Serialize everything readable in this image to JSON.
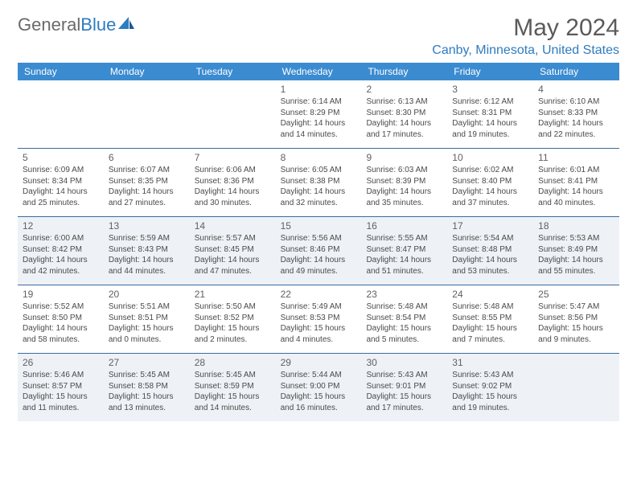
{
  "brand": {
    "name_gray": "General",
    "name_blue": "Blue"
  },
  "title": "May 2024",
  "location": "Canby, Minnesota, United States",
  "colors": {
    "header_bg": "#3b8bd0",
    "header_text": "#ffffff",
    "row_border": "#3b6ba0",
    "shade_bg": "#eef2f6",
    "brand_blue": "#2e7cc0",
    "text_gray": "#5a5a5a"
  },
  "day_headers": [
    "Sunday",
    "Monday",
    "Tuesday",
    "Wednesday",
    "Thursday",
    "Friday",
    "Saturday"
  ],
  "weeks": [
    [
      {
        "num": "",
        "sunrise": "",
        "sunset": "",
        "daylight": "",
        "shade": false
      },
      {
        "num": "",
        "sunrise": "",
        "sunset": "",
        "daylight": "",
        "shade": false
      },
      {
        "num": "",
        "sunrise": "",
        "sunset": "",
        "daylight": "",
        "shade": false
      },
      {
        "num": "1",
        "sunrise": "Sunrise: 6:14 AM",
        "sunset": "Sunset: 8:29 PM",
        "daylight": "Daylight: 14 hours and 14 minutes.",
        "shade": false
      },
      {
        "num": "2",
        "sunrise": "Sunrise: 6:13 AM",
        "sunset": "Sunset: 8:30 PM",
        "daylight": "Daylight: 14 hours and 17 minutes.",
        "shade": false
      },
      {
        "num": "3",
        "sunrise": "Sunrise: 6:12 AM",
        "sunset": "Sunset: 8:31 PM",
        "daylight": "Daylight: 14 hours and 19 minutes.",
        "shade": false
      },
      {
        "num": "4",
        "sunrise": "Sunrise: 6:10 AM",
        "sunset": "Sunset: 8:33 PM",
        "daylight": "Daylight: 14 hours and 22 minutes.",
        "shade": false
      }
    ],
    [
      {
        "num": "5",
        "sunrise": "Sunrise: 6:09 AM",
        "sunset": "Sunset: 8:34 PM",
        "daylight": "Daylight: 14 hours and 25 minutes.",
        "shade": false
      },
      {
        "num": "6",
        "sunrise": "Sunrise: 6:07 AM",
        "sunset": "Sunset: 8:35 PM",
        "daylight": "Daylight: 14 hours and 27 minutes.",
        "shade": false
      },
      {
        "num": "7",
        "sunrise": "Sunrise: 6:06 AM",
        "sunset": "Sunset: 8:36 PM",
        "daylight": "Daylight: 14 hours and 30 minutes.",
        "shade": false
      },
      {
        "num": "8",
        "sunrise": "Sunrise: 6:05 AM",
        "sunset": "Sunset: 8:38 PM",
        "daylight": "Daylight: 14 hours and 32 minutes.",
        "shade": false
      },
      {
        "num": "9",
        "sunrise": "Sunrise: 6:03 AM",
        "sunset": "Sunset: 8:39 PM",
        "daylight": "Daylight: 14 hours and 35 minutes.",
        "shade": false
      },
      {
        "num": "10",
        "sunrise": "Sunrise: 6:02 AM",
        "sunset": "Sunset: 8:40 PM",
        "daylight": "Daylight: 14 hours and 37 minutes.",
        "shade": false
      },
      {
        "num": "11",
        "sunrise": "Sunrise: 6:01 AM",
        "sunset": "Sunset: 8:41 PM",
        "daylight": "Daylight: 14 hours and 40 minutes.",
        "shade": false
      }
    ],
    [
      {
        "num": "12",
        "sunrise": "Sunrise: 6:00 AM",
        "sunset": "Sunset: 8:42 PM",
        "daylight": "Daylight: 14 hours and 42 minutes.",
        "shade": true
      },
      {
        "num": "13",
        "sunrise": "Sunrise: 5:59 AM",
        "sunset": "Sunset: 8:43 PM",
        "daylight": "Daylight: 14 hours and 44 minutes.",
        "shade": true
      },
      {
        "num": "14",
        "sunrise": "Sunrise: 5:57 AM",
        "sunset": "Sunset: 8:45 PM",
        "daylight": "Daylight: 14 hours and 47 minutes.",
        "shade": true
      },
      {
        "num": "15",
        "sunrise": "Sunrise: 5:56 AM",
        "sunset": "Sunset: 8:46 PM",
        "daylight": "Daylight: 14 hours and 49 minutes.",
        "shade": true
      },
      {
        "num": "16",
        "sunrise": "Sunrise: 5:55 AM",
        "sunset": "Sunset: 8:47 PM",
        "daylight": "Daylight: 14 hours and 51 minutes.",
        "shade": true
      },
      {
        "num": "17",
        "sunrise": "Sunrise: 5:54 AM",
        "sunset": "Sunset: 8:48 PM",
        "daylight": "Daylight: 14 hours and 53 minutes.",
        "shade": true
      },
      {
        "num": "18",
        "sunrise": "Sunrise: 5:53 AM",
        "sunset": "Sunset: 8:49 PM",
        "daylight": "Daylight: 14 hours and 55 minutes.",
        "shade": true
      }
    ],
    [
      {
        "num": "19",
        "sunrise": "Sunrise: 5:52 AM",
        "sunset": "Sunset: 8:50 PM",
        "daylight": "Daylight: 14 hours and 58 minutes.",
        "shade": false
      },
      {
        "num": "20",
        "sunrise": "Sunrise: 5:51 AM",
        "sunset": "Sunset: 8:51 PM",
        "daylight": "Daylight: 15 hours and 0 minutes.",
        "shade": false
      },
      {
        "num": "21",
        "sunrise": "Sunrise: 5:50 AM",
        "sunset": "Sunset: 8:52 PM",
        "daylight": "Daylight: 15 hours and 2 minutes.",
        "shade": false
      },
      {
        "num": "22",
        "sunrise": "Sunrise: 5:49 AM",
        "sunset": "Sunset: 8:53 PM",
        "daylight": "Daylight: 15 hours and 4 minutes.",
        "shade": false
      },
      {
        "num": "23",
        "sunrise": "Sunrise: 5:48 AM",
        "sunset": "Sunset: 8:54 PM",
        "daylight": "Daylight: 15 hours and 5 minutes.",
        "shade": false
      },
      {
        "num": "24",
        "sunrise": "Sunrise: 5:48 AM",
        "sunset": "Sunset: 8:55 PM",
        "daylight": "Daylight: 15 hours and 7 minutes.",
        "shade": false
      },
      {
        "num": "25",
        "sunrise": "Sunrise: 5:47 AM",
        "sunset": "Sunset: 8:56 PM",
        "daylight": "Daylight: 15 hours and 9 minutes.",
        "shade": false
      }
    ],
    [
      {
        "num": "26",
        "sunrise": "Sunrise: 5:46 AM",
        "sunset": "Sunset: 8:57 PM",
        "daylight": "Daylight: 15 hours and 11 minutes.",
        "shade": true
      },
      {
        "num": "27",
        "sunrise": "Sunrise: 5:45 AM",
        "sunset": "Sunset: 8:58 PM",
        "daylight": "Daylight: 15 hours and 13 minutes.",
        "shade": true
      },
      {
        "num": "28",
        "sunrise": "Sunrise: 5:45 AM",
        "sunset": "Sunset: 8:59 PM",
        "daylight": "Daylight: 15 hours and 14 minutes.",
        "shade": true
      },
      {
        "num": "29",
        "sunrise": "Sunrise: 5:44 AM",
        "sunset": "Sunset: 9:00 PM",
        "daylight": "Daylight: 15 hours and 16 minutes.",
        "shade": true
      },
      {
        "num": "30",
        "sunrise": "Sunrise: 5:43 AM",
        "sunset": "Sunset: 9:01 PM",
        "daylight": "Daylight: 15 hours and 17 minutes.",
        "shade": true
      },
      {
        "num": "31",
        "sunrise": "Sunrise: 5:43 AM",
        "sunset": "Sunset: 9:02 PM",
        "daylight": "Daylight: 15 hours and 19 minutes.",
        "shade": true
      },
      {
        "num": "",
        "sunrise": "",
        "sunset": "",
        "daylight": "",
        "shade": true
      }
    ]
  ]
}
